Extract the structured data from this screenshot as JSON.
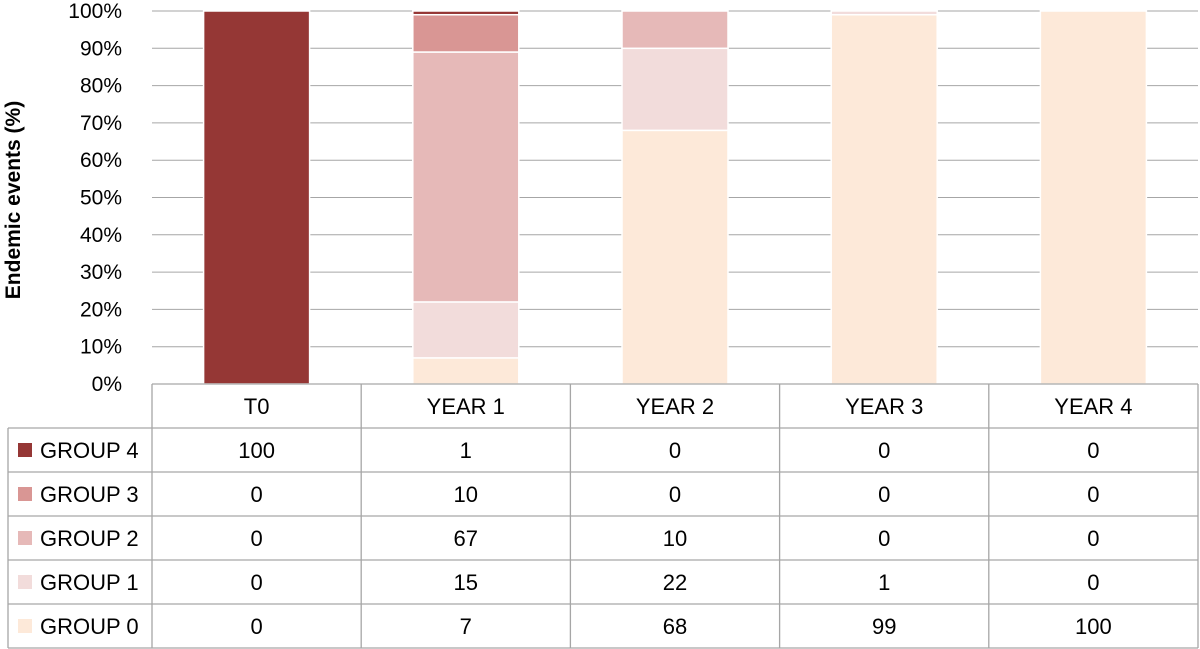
{
  "chart_data": {
    "type": "bar",
    "stacked": true,
    "ylabel": "Endemic events (%)",
    "ylim": [
      0,
      100
    ],
    "yticks": [
      "0%",
      "10%",
      "20%",
      "30%",
      "40%",
      "50%",
      "60%",
      "70%",
      "80%",
      "90%",
      "100%"
    ],
    "categories": [
      "T0",
      "YEAR 1",
      "YEAR 2",
      "YEAR 3",
      "YEAR 4"
    ],
    "grid": true,
    "legend": "data-table-left",
    "series": [
      {
        "name": "GROUP 4",
        "color": "#953735",
        "values": [
          100,
          1,
          0,
          0,
          0
        ]
      },
      {
        "name": "GROUP 3",
        "color": "#d99694",
        "values": [
          0,
          10,
          0,
          0,
          0
        ]
      },
      {
        "name": "GROUP 2",
        "color": "#e6b9b8",
        "values": [
          0,
          67,
          10,
          0,
          0
        ]
      },
      {
        "name": "GROUP 1",
        "color": "#f2dcdb",
        "values": [
          0,
          15,
          22,
          1,
          0
        ]
      },
      {
        "name": "GROUP 0",
        "color": "#fde9d9",
        "values": [
          0,
          7,
          68,
          99,
          100
        ]
      }
    ]
  }
}
